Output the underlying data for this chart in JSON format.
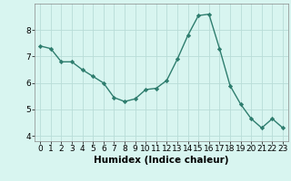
{
  "x": [
    0,
    1,
    2,
    3,
    4,
    5,
    6,
    7,
    8,
    9,
    10,
    11,
    12,
    13,
    14,
    15,
    16,
    17,
    18,
    19,
    20,
    21,
    22,
    23
  ],
  "y": [
    7.4,
    7.3,
    6.8,
    6.8,
    6.5,
    6.25,
    6.0,
    5.45,
    5.3,
    5.4,
    5.75,
    5.8,
    6.1,
    6.9,
    7.8,
    8.55,
    8.6,
    7.3,
    5.9,
    5.2,
    4.65,
    4.3,
    4.65,
    4.3
  ],
  "line_color": "#2e7d6e",
  "marker": "D",
  "marker_size": 2.2,
  "linewidth": 1.0,
  "xlabel": "Humidex (Indice chaleur)",
  "xlim": [
    -0.5,
    23.5
  ],
  "ylim": [
    3.8,
    9.0
  ],
  "yticks": [
    4,
    5,
    6,
    7,
    8
  ],
  "xticks": [
    0,
    1,
    2,
    3,
    4,
    5,
    6,
    7,
    8,
    9,
    10,
    11,
    12,
    13,
    14,
    15,
    16,
    17,
    18,
    19,
    20,
    21,
    22,
    23
  ],
  "bg_color": "#d8f5f0",
  "grid_color": "#b8ddd8",
  "xlabel_fontsize": 7.5,
  "tick_fontsize": 6.5
}
